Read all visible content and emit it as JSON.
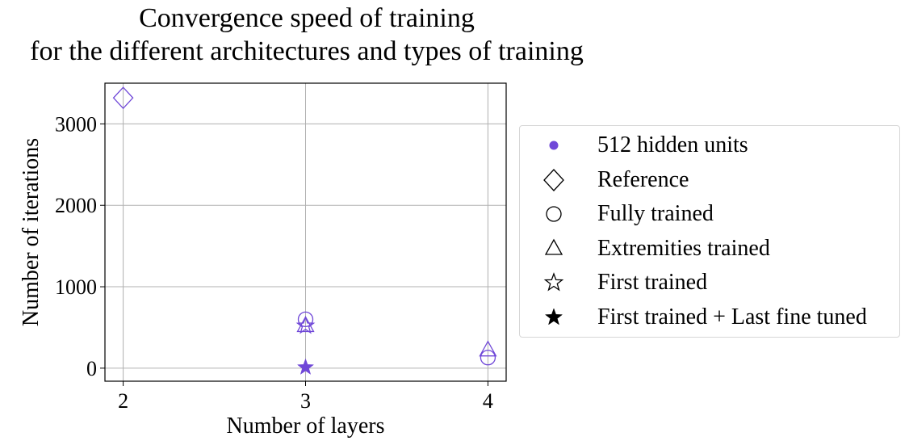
{
  "title": [
    "Convergence speed of training",
    "for the different architectures and types of training"
  ],
  "chart_data": {
    "type": "scatter",
    "title": "Convergence speed of training for the different architectures and types of training",
    "xlabel": "Number of layers",
    "ylabel": "Number of iterations",
    "xlim": [
      1.9,
      4.1
    ],
    "ylim": [
      -160,
      3500
    ],
    "x_ticks": [
      2,
      3,
      4
    ],
    "y_ticks": [
      0,
      1000,
      2000,
      3000
    ],
    "x_tick_labels": [
      "2",
      "3",
      "4"
    ],
    "y_tick_labels": [
      "0",
      "1000",
      "2000",
      "3000"
    ],
    "grid": true,
    "legend_position": "right, outside plot",
    "color": "#7048d8",
    "series": [
      {
        "name": "Reference",
        "marker": "diamond",
        "filled": false,
        "points": [
          {
            "x": 2,
            "y": 3320
          }
        ]
      },
      {
        "name": "Fully trained",
        "marker": "circle",
        "filled": false,
        "points": [
          {
            "x": 3,
            "y": 600
          },
          {
            "x": 4,
            "y": 130
          }
        ]
      },
      {
        "name": "Extremities trained",
        "marker": "triangle",
        "filled": false,
        "points": [
          {
            "x": 3,
            "y": 520
          },
          {
            "x": 4,
            "y": 220
          }
        ]
      },
      {
        "name": "First trained",
        "marker": "star",
        "filled": false,
        "points": [
          {
            "x": 3,
            "y": 520
          }
        ]
      },
      {
        "name": "First trained + Last fine tuned",
        "marker": "star",
        "filled": true,
        "points": [
          {
            "x": 3,
            "y": 10
          }
        ]
      }
    ]
  },
  "legend": [
    {
      "label": "512 hidden units",
      "marker": "dot",
      "color": "#7048d8"
    },
    {
      "label": "Reference",
      "marker": "diamond",
      "color": "#000000"
    },
    {
      "label": "Fully trained",
      "marker": "circle",
      "color": "#000000"
    },
    {
      "label": "Extremities trained",
      "marker": "triangle",
      "color": "#000000"
    },
    {
      "label": "First trained",
      "marker": "star-open",
      "color": "#000000"
    },
    {
      "label": "First trained + Last fine tuned",
      "marker": "star-filled",
      "color": "#000000"
    }
  ]
}
